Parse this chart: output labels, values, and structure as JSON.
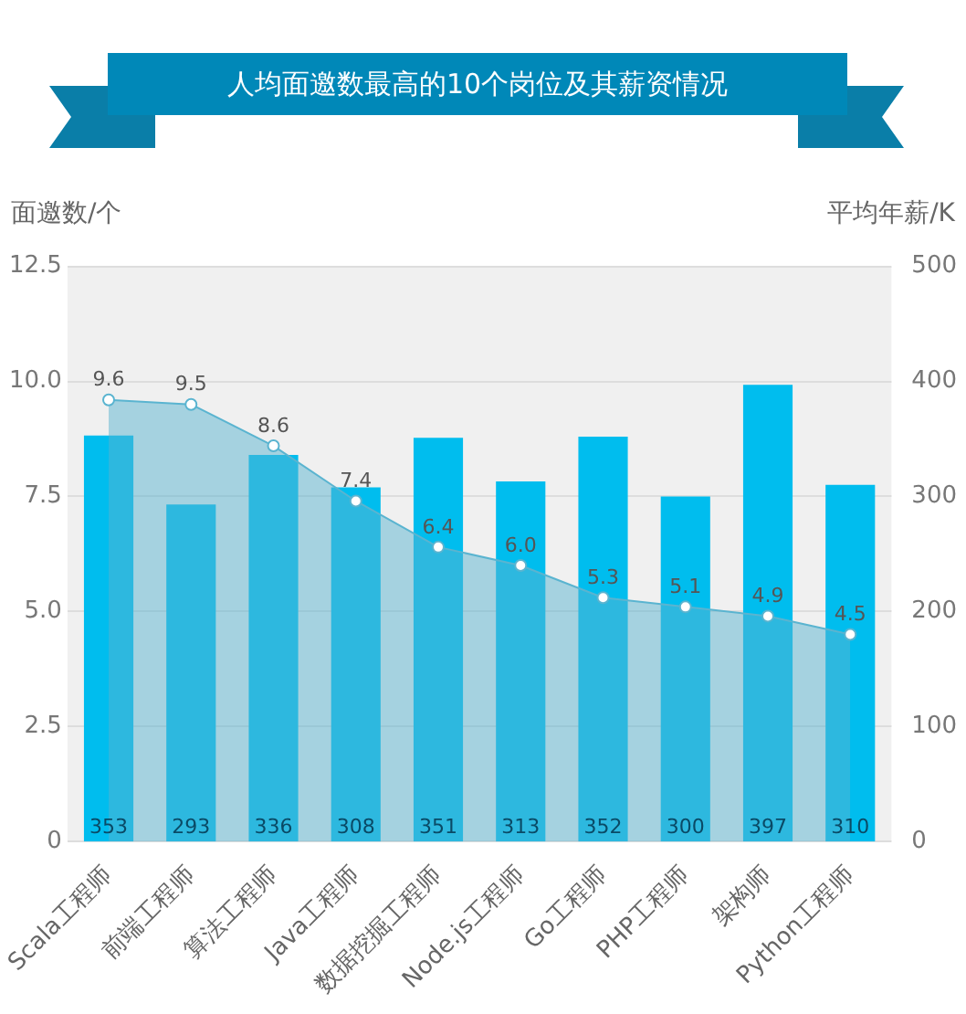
{
  "chart_data": {
    "type": "bar",
    "title": "人均面邀数最高的10个岗位及其薪资情况",
    "ylabel": "面邀数/个",
    "y2label": "平均年薪/K",
    "categories": [
      "Scala工程师",
      "前端工程师",
      "算法工程师",
      "Java工程师",
      "数据挖掘工程师",
      "Node.js工程师",
      "Go工程师",
      "PHP工程师",
      "架构师",
      "Python工程师"
    ],
    "series": [
      {
        "axis": "y2",
        "color": "#00bdee",
        "values": [
          353,
          293,
          336,
          308,
          351,
          313,
          352,
          300,
          397,
          310
        ]
      },
      {
        "type": "area",
        "axis": "y",
        "color": "#5ab4d0",
        "values": [
          9.6,
          9.5,
          8.6,
          7.4,
          6.4,
          6.0,
          5.3,
          5.1,
          4.9,
          4.5
        ],
        "value_labels": [
          "9.6",
          "9.5",
          "8.6",
          "7.4",
          "6.4",
          "6.0",
          "5.3",
          "5.1",
          "4.9",
          "4.5"
        ]
      }
    ],
    "ylim": [
      0,
      12.5
    ],
    "yticks": [
      0,
      2.5,
      {
        "value": 5,
        "label": "5.0"
      },
      7.5,
      {
        "value": 10,
        "label": "10.0"
      },
      12.5
    ],
    "y2lim": [
      0,
      500
    ],
    "y2ticks": [
      0,
      100,
      200,
      300,
      400,
      500
    ],
    "grid": "y",
    "legend": false,
    "marker": "circle",
    "data_labels": true
  }
}
